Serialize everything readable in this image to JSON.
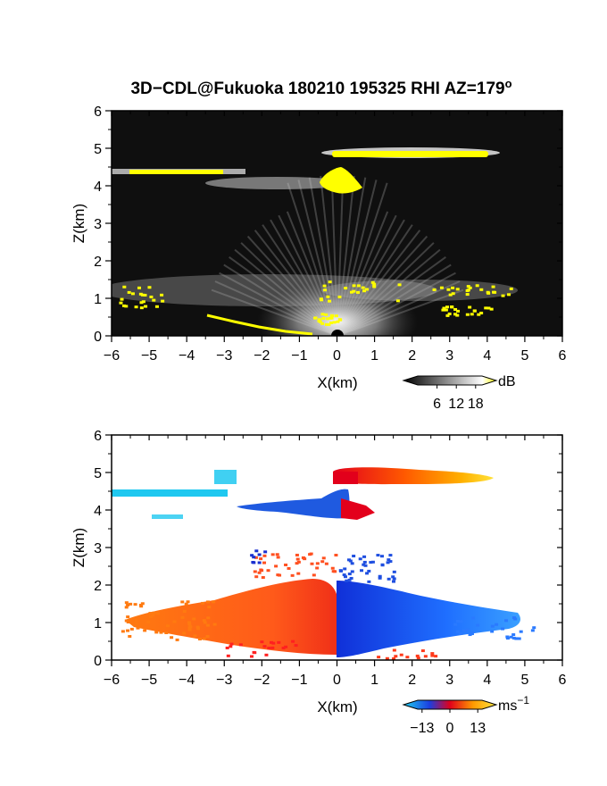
{
  "chart_data": [
    {
      "type": "heatmap",
      "title": "3D−CDL@Fukuoka 180210 195325 RHI AZ=179",
      "title_superscript": "o",
      "xlabel": "X(km)",
      "ylabel": "Z(km)",
      "xlim": [
        -6,
        6
      ],
      "ylim": [
        0,
        6
      ],
      "x_ticks": [
        "−6",
        "−5",
        "−4",
        "−3",
        "−2",
        "−1",
        "0",
        "1",
        "2",
        "3",
        "4",
        "5",
        "6"
      ],
      "y_ticks": [
        "0",
        "1",
        "2",
        "3",
        "4",
        "5",
        "6"
      ],
      "background_color": "#0a0a0a",
      "colorbar": {
        "label": "dB",
        "ticks": [
          "6",
          "12",
          "18"
        ],
        "range": [
          0,
          20
        ],
        "colors": [
          "#000000",
          "#ffffff",
          "#ffff00"
        ]
      },
      "features": [
        {
          "name": "cloud layer",
          "x": [
            0.2,
            4.0
          ],
          "z": 4.8,
          "value_db": 18
        },
        {
          "name": "cloud layer",
          "x": [
            -6.0,
            -3.0
          ],
          "z": 4.35,
          "value_db": 18
        },
        {
          "name": "bright blob",
          "x": [
            -0.3,
            0.5
          ],
          "z": 4.15,
          "value_db": 20
        },
        {
          "name": "boundary layer echoes",
          "x": [
            -5.6,
            4.4
          ],
          "z": [
            0.6,
            1.4
          ],
          "value_db": 16
        }
      ]
    },
    {
      "type": "heatmap",
      "xlabel": "X(km)",
      "ylabel": "Z(km)",
      "xlim": [
        -6,
        6
      ],
      "ylim": [
        0,
        6
      ],
      "x_ticks": [
        "−6",
        "−5",
        "−4",
        "−3",
        "−2",
        "−1",
        "0",
        "1",
        "2",
        "3",
        "4",
        "5",
        "6"
      ],
      "y_ticks": [
        "0",
        "1",
        "2",
        "3",
        "4",
        "5",
        "6"
      ],
      "background_color": "#ffffff",
      "colorbar": {
        "label": "ms",
        "label_superscript": "−1",
        "ticks": [
          "−13",
          "0",
          "13"
        ],
        "range": [
          -15,
          15
        ],
        "colors": [
          "#1fd0f0",
          "#1b3ee0",
          "#e0001b",
          "#ff9a00",
          "#ffe640"
        ]
      },
      "features": [
        {
          "name": "upper layer",
          "x": [
            0.0,
            4.2
          ],
          "z": 4.8,
          "velocity_ms": 8
        },
        {
          "name": "upper layer",
          "x": [
            -6.0,
            -3.0
          ],
          "z": 4.35,
          "velocity_ms": -14
        },
        {
          "name": "mid blob",
          "x": [
            -2.5,
            0.3
          ],
          "z": 4.1,
          "velocity_ms": -6
        },
        {
          "name": "lower flow",
          "x": [
            -5.6,
            0.0
          ],
          "z": [
            0.0,
            2.0
          ],
          "velocity_ms": 5
        },
        {
          "name": "lower flow",
          "x": [
            0.0,
            4.8
          ],
          "z": [
            0.0,
            2.0
          ],
          "velocity_ms": -6
        }
      ]
    }
  ]
}
